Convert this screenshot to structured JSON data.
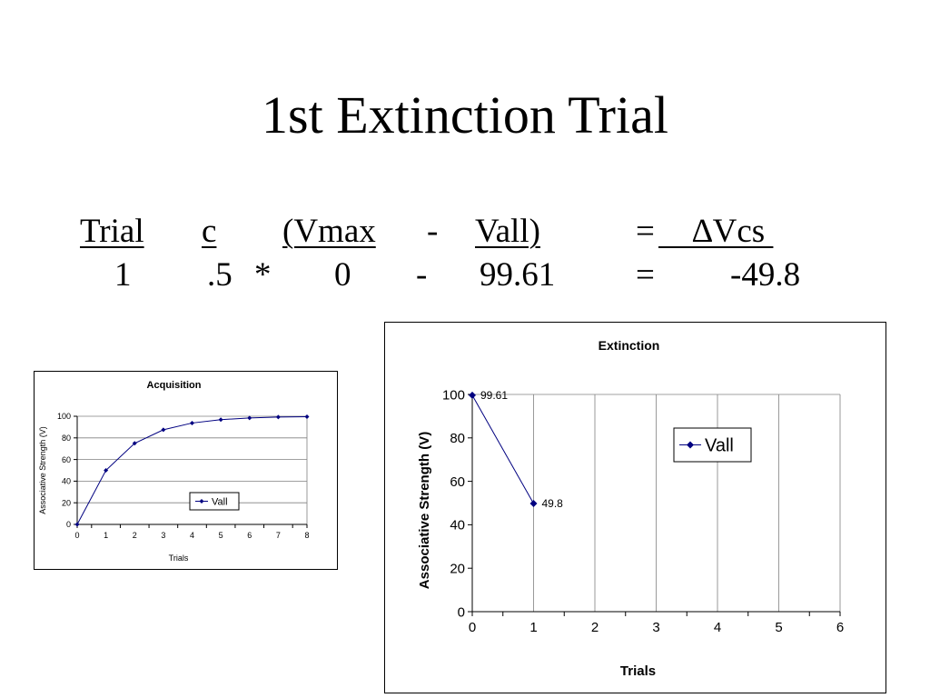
{
  "slide": {
    "title": "1st Extinction Trial",
    "formula": {
      "header": {
        "trial": "Trial",
        "c": " c ",
        "vmax": "(Vmax ",
        "minus": "-",
        "vall": "Vall) ",
        "equals": "=",
        "delta": "    ∆Vcs "
      },
      "values": {
        "trial": "1",
        "c": ".5",
        "times": "*",
        "vmax": "0",
        "minus": "-",
        "vall": "99.61",
        "equals": "=",
        "delta": "-49.8"
      }
    }
  },
  "colors": {
    "series": "#000080",
    "axis": "#808080",
    "text": "#000000"
  },
  "chart_data": [
    {
      "id": "acquisition",
      "type": "line",
      "title": "Acquisition",
      "xlabel": "Trials",
      "ylabel": "Associative Strength (V)",
      "xlim": [
        0,
        8
      ],
      "ylim": [
        0,
        100
      ],
      "xticks": [
        0,
        1,
        2,
        3,
        4,
        5,
        6,
        7,
        8
      ],
      "yticks": [
        0,
        20,
        40,
        60,
        80,
        100
      ],
      "grid": {
        "horizontal": true,
        "vertical": false
      },
      "legend": "right",
      "series": [
        {
          "name": "Vall",
          "x": [
            0,
            1,
            2,
            3,
            4,
            5,
            6,
            7,
            8
          ],
          "y": [
            0,
            50,
            75,
            87.5,
            93.75,
            96.88,
            98.44,
            99.22,
            99.61
          ]
        }
      ]
    },
    {
      "id": "extinction",
      "type": "line",
      "title": "Extinction",
      "xlabel": "Trials",
      "ylabel": "Associative Strength (V)",
      "xlim": [
        0,
        6
      ],
      "ylim": [
        0,
        100
      ],
      "xticks": [
        0,
        1,
        2,
        3,
        4,
        5,
        6
      ],
      "yticks": [
        0,
        20,
        40,
        60,
        80,
        100
      ],
      "grid": {
        "horizontal": false,
        "vertical": true
      },
      "legend": "right",
      "series": [
        {
          "name": "Vall",
          "x": [
            0,
            1
          ],
          "y": [
            99.61,
            49.8
          ],
          "data_labels": [
            "99.61",
            "49.8"
          ]
        }
      ]
    }
  ]
}
